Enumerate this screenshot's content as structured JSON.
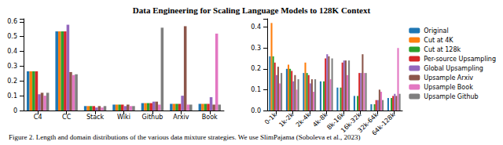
{
  "title": "Data Engineering for Scaling Language Models to 128K Context",
  "caption": "Figure 2. Length and domain distributions of the various data mixture strategies. We use SlimPajama (Soboleva et al., 2023)",
  "chart_data": [
    {
      "type": "bar",
      "categories": [
        "C4",
        "CC",
        "Stack",
        "Wiki",
        "Github",
        "Arxiv",
        "Book"
      ],
      "ylim": [
        0,
        0.62
      ],
      "yticks": [
        0,
        0.1,
        0.2,
        0.3,
        0.4,
        0.5,
        0.6
      ],
      "series": [
        {
          "name": "Original",
          "color": "#1f77b4",
          "values": [
            0.265,
            0.535,
            0.03,
            0.04,
            0.05,
            0.045,
            0.045
          ]
        },
        {
          "name": "Cut at 4K",
          "color": "#ff7f0e",
          "values": [
            0.265,
            0.535,
            0.03,
            0.04,
            0.05,
            0.045,
            0.045
          ]
        },
        {
          "name": "Cut at 128k",
          "color": "#2ca02c",
          "values": [
            0.265,
            0.535,
            0.03,
            0.04,
            0.05,
            0.045,
            0.045
          ]
        },
        {
          "name": "Per-source Upsampling",
          "color": "#d62728",
          "values": [
            0.265,
            0.535,
            0.03,
            0.04,
            0.05,
            0.045,
            0.045
          ]
        },
        {
          "name": "Global Upsampling",
          "color": "#9467bd",
          "values": [
            0.11,
            0.58,
            0.02,
            0.03,
            0.06,
            0.1,
            0.09
          ]
        },
        {
          "name": "Upsample Arxiv",
          "color": "#8c564b",
          "values": [
            0.12,
            0.26,
            0.03,
            0.04,
            0.06,
            0.57,
            0.04
          ]
        },
        {
          "name": "Upsample Book",
          "color": "#e377c2",
          "values": [
            0.1,
            0.24,
            0.02,
            0.03,
            0.04,
            0.04,
            0.52
          ]
        },
        {
          "name": "Upsample Github",
          "color": "#7f7f7f",
          "values": [
            0.12,
            0.245,
            0.03,
            0.03,
            0.56,
            0.04,
            0.04
          ]
        }
      ]
    },
    {
      "type": "bar",
      "categories": [
        "0-1k",
        "1k-2k",
        "2k-4k",
        "4k-8k",
        "8k-16k",
        "16k-32k",
        "32k-64k",
        "64k-128k"
      ],
      "ylim": [
        0,
        0.44
      ],
      "yticks": [
        {
          "value": 0,
          "label": "0.0"
        },
        0.1,
        0.2,
        0.3,
        0.4
      ],
      "legend": "right",
      "series": [
        {
          "name": "Original",
          "color": "#1f77b4",
          "values": [
            0.26,
            0.2,
            0.18,
            0.14,
            0.11,
            0.07,
            0.03,
            0.06
          ]
        },
        {
          "name": "Cut at 4K",
          "color": "#ff7f0e",
          "values": [
            0.42,
            0.22,
            0.23,
            0,
            0,
            0,
            0,
            0
          ]
        },
        {
          "name": "Cut at 128k",
          "color": "#2ca02c",
          "values": [
            0.26,
            0.2,
            0.18,
            0.14,
            0.11,
            0.07,
            0.03,
            0.06
          ]
        },
        {
          "name": "Per-source Upsampling",
          "color": "#d62728",
          "values": [
            0.23,
            0.19,
            0.17,
            0.25,
            0.23,
            0.18,
            0.05,
            0.07
          ]
        },
        {
          "name": "Global Upsampling",
          "color": "#9467bd",
          "values": [
            0.17,
            0.14,
            0.13,
            0.27,
            0.24,
            0.18,
            0.05,
            0.08
          ]
        },
        {
          "name": "Upsample Arxiv",
          "color": "#8c564b",
          "values": [
            0.21,
            0.17,
            0.15,
            0.26,
            0.24,
            0.27,
            0.1,
            0.07
          ]
        },
        {
          "name": "Upsample Book",
          "color": "#e377c2",
          "values": [
            0.13,
            0.1,
            0.09,
            0.15,
            0.17,
            0.18,
            0.09,
            0.3
          ]
        },
        {
          "name": "Upsample Github",
          "color": "#7f7f7f",
          "values": [
            0.18,
            0.15,
            0.15,
            0.25,
            0.24,
            0.18,
            0.05,
            0.08
          ]
        }
      ]
    }
  ]
}
